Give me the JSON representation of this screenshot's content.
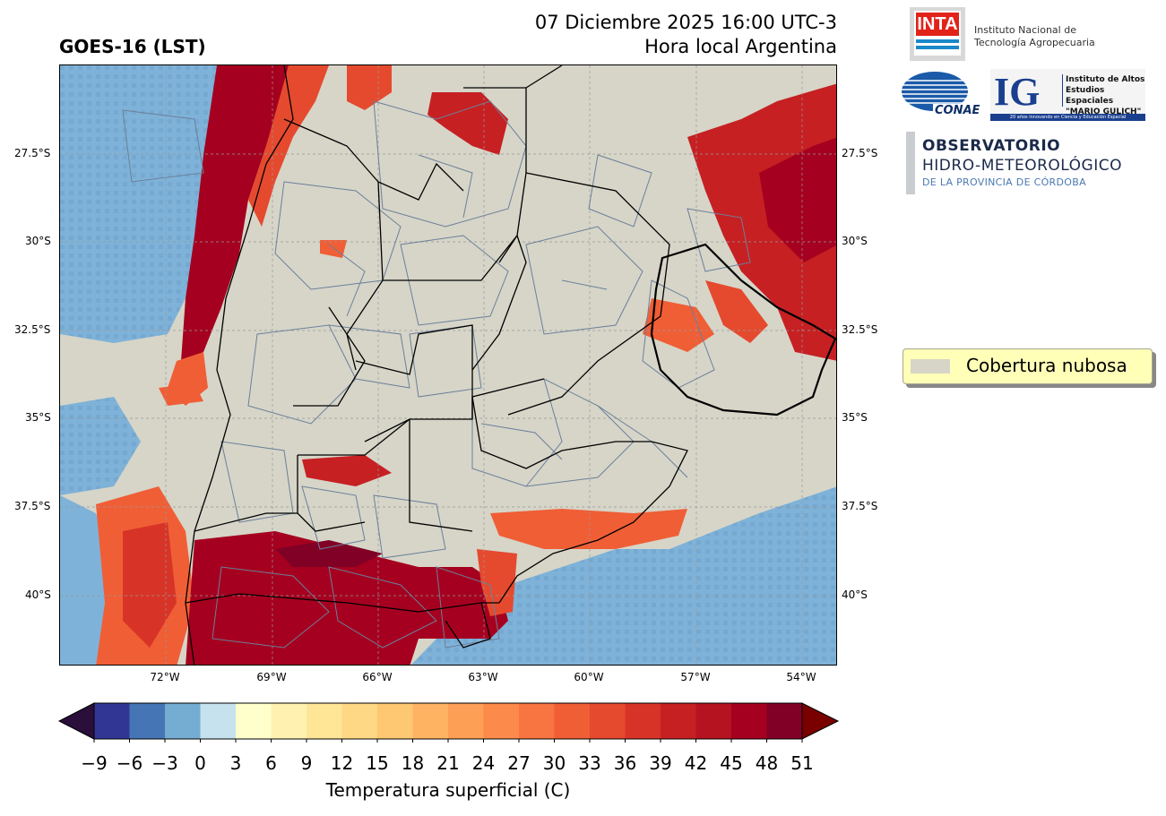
{
  "header": {
    "title_left": "GOES-16 (LST)",
    "title_right_line1": "07 Diciembre 2025 16:00 UTC-3",
    "title_right_line2": "Hora local Argentina"
  },
  "logos": {
    "inta_mark": "INTA",
    "inta_name_line1": "Instituto Nacional de",
    "inta_name_line2": "Tecnología Agropecuaria",
    "conae_mark": "CONAE",
    "ig_mark": "IG",
    "ig_name_line1": "Instituto de Altos",
    "ig_name_line2": "Estudios Espaciales",
    "ig_name_line3": "\"MARIO GULICH\"",
    "ig_tagline": "20 años innovando en Ciencia y Educación Espacial",
    "observatorio_line1": "OBSERVATORIO",
    "observatorio_line2": "HIDRO-METEOROLÓGICO",
    "observatorio_line3": "DE LA PROVINCIA DE CÓRDOBA"
  },
  "map": {
    "lat_ticks": [
      "27.5°S",
      "30°S",
      "32.5°S",
      "35°S",
      "37.5°S",
      "40°S"
    ],
    "lon_ticks": [
      "72°W",
      "69°W",
      "66°W",
      "63°W",
      "60°W",
      "57°W",
      "54°W"
    ],
    "cloud_color": "#d6d5c8",
    "ocean_color": "#7fb2d8",
    "grid": true
  },
  "legend": {
    "cloud_label": "Cobertura nubosa"
  },
  "colorbar": {
    "title": "Temperatura superficial (C)",
    "ticks": [
      "−9",
      "−6",
      "−3",
      "0",
      "3",
      "6",
      "9",
      "12",
      "15",
      "18",
      "21",
      "24",
      "27",
      "30",
      "33",
      "36",
      "39",
      "42",
      "45",
      "48",
      "51"
    ],
    "colors": [
      "#313695",
      "#4575b4",
      "#74add1",
      "#c6e2ee",
      "#ffffcc",
      "#fff2b0",
      "#ffe697",
      "#fed884",
      "#fec771",
      "#feb363",
      "#fd9f55",
      "#fc8a4a",
      "#f87441",
      "#f05e36",
      "#e54a2e",
      "#d73427",
      "#c62023",
      "#b4131f",
      "#a5001f",
      "#800026"
    ],
    "under_color": "#2a0f3a",
    "over_color": "#7a0000"
  }
}
